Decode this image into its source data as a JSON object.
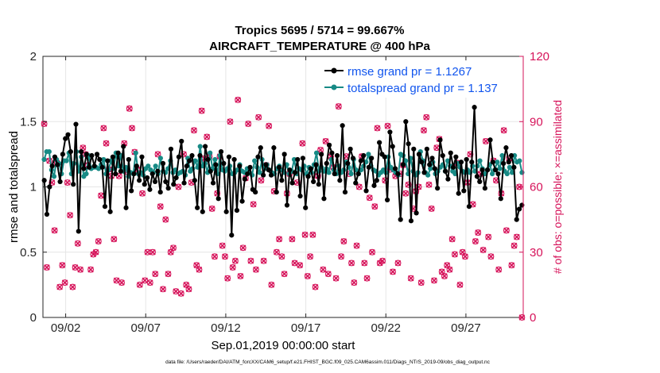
{
  "chart_data": {
    "type": "line",
    "title": "Tropics 5695 / 5714 = 99.667%",
    "subtitle": "AIRCRAFT_TEMPERATURE @ 400 hPa",
    "xlabel": "Sep.01,2019 00:00:00 start",
    "ylabel": "rmse and totalspread",
    "ylabel_right": "# of obs: o=possible; ×=assimilated",
    "xlim": [
      0.5,
      30.5
    ],
    "ylim": [
      0,
      2
    ],
    "ylim_right": [
      0,
      120
    ],
    "x_ticks": [
      {
        "value": 1.92,
        "label": "09/02"
      },
      {
        "value": 6.92,
        "label": "09/07"
      },
      {
        "value": 11.92,
        "label": "09/12"
      },
      {
        "value": 16.92,
        "label": "09/17"
      },
      {
        "value": 21.92,
        "label": "09/22"
      },
      {
        "value": 26.92,
        "label": "09/27"
      }
    ],
    "y_ticks": [
      "0",
      "0.5",
      "1",
      "1.5",
      "2"
    ],
    "y_ticks_right": [
      "0",
      "30",
      "60",
      "90",
      "120"
    ],
    "grid": true,
    "legend_position": "top-right",
    "footnote": "data file: /Users/raeder/DAI/ATM_forcXX/CAM6_setup/f.e21.FHIST_BGC.f09_025.CAM6assim.011/Diags_NTrS_2019-09/obs_diag_output.nc",
    "series": [
      {
        "name": "rmse grand pr = 1.1267",
        "color": "#000000",
        "y_axis": "left",
        "values": [
          1.05,
          0.79,
          1.0,
          1.16,
          1.23,
          1.17,
          1.04,
          1.25,
          1.37,
          1.4,
          1.27,
          1.02,
          1.48,
          0.66,
          1.27,
          1.14,
          1.25,
          1.15,
          1.24,
          1.16,
          1.25,
          1.21,
          1.15,
          0.85,
          1.2,
          0.81,
          1.23,
          1.1,
          1.26,
          1.12,
          1.31,
          0.84,
          1.21,
          0.97,
          1.1,
          1.16,
          1.05,
          1.23,
          1.02,
          1.07,
          0.98,
          1.1,
          1.04,
          1.12,
          0.96,
          1.18,
          1.04,
          0.99,
          1.29,
          1.02,
          1.07,
          1.23,
          1.35,
          1.03,
          1.16,
          1.2,
          1.24,
          1.05,
          0.84,
          1.24,
          0.81,
          1.31,
          1.21,
          1.12,
          1.03,
          1.17,
          0.91,
          1.27,
          1.18,
          0.81,
          1.23,
          0.63,
          1.21,
          0.82,
          1.16,
          0.89,
          1.06,
          1.1,
          1.15,
          0.98,
          0.96,
          1.23,
          1.3,
          1.09,
          1.17,
          1.13,
          1.09,
          1.3,
          0.96,
          1.15,
          1.05,
          1.25,
          0.86,
          1.13,
          1.03,
          1.11,
          1.21,
          0.93,
          1.22,
          0.84,
          1.08,
          1.14,
          1.04,
          1.17,
          1.02,
          1.25,
          0.91,
          1.18,
          1.32,
          1.26,
          1.1,
          1.24,
          1.05,
          1.47,
          0.96,
          1.18,
          1.29,
          1.22,
          1.03,
          1.1,
          1.2,
          1.24,
          0.97,
          1.15,
          1.22,
          1.01,
          1.05,
          1.34,
          1.25,
          1.23,
          0.9,
          1.42,
          1.31,
          1.14,
          1.1,
          0.75,
          1.17,
          1.5,
          1.33,
          0.74,
          1.29,
          0.8,
          1.25,
          1.19,
          1.11,
          1.29,
          1.17,
          1.22,
          1.14,
          0.99,
          1.36,
          1.24,
          1.12,
          1.06,
          1.26,
          1.15,
          1.23,
          0.95,
          1.19,
          0.97,
          1.21,
          0.85,
          1.19,
          1.61,
          1.08,
          1.04,
          1.13,
          0.99,
          1.13,
          1.36,
          1.19,
          1.13,
          1.1,
          0.91,
          1.18,
          1.3,
          1.19,
          1.24,
          1.15,
          0.75,
          0.83,
          0.86
        ]
      },
      {
        "name": "totalspread grand pr = 1.137",
        "color": "#178a85",
        "y_axis": "left",
        "values": [
          1.21,
          1.27,
          1.27,
          1.13,
          1.08,
          1.21,
          1.18,
          1.1,
          1.2,
          1.2,
          1.26,
          1.1,
          1.18,
          1.27,
          1.12,
          1.23,
          1.08,
          1.1,
          1.24,
          1.14,
          1.15,
          1.15,
          1.14,
          1.17,
          1.21,
          1.1,
          1.13,
          1.2,
          1.14,
          1.26,
          1.16,
          1.24,
          1.12,
          1.15,
          1.08,
          1.11,
          1.1,
          1.26,
          1.1,
          1.11,
          1.09,
          1.14,
          1.16,
          1.13,
          1.11,
          1.16,
          1.1,
          1.22,
          1.12,
          1.11,
          1.14,
          1.2,
          1.11,
          1.13,
          1.1,
          1.11,
          1.12,
          1.09,
          1.22,
          1.12,
          1.14,
          1.2,
          1.15,
          1.31,
          1.16,
          1.18,
          1.11,
          1.26,
          1.14,
          1.21,
          1.1,
          1.24,
          1.13,
          1.12,
          1.14,
          1.16,
          1.1,
          1.11,
          1.13,
          1.17,
          1.12,
          1.11,
          1.14,
          1.11,
          1.09,
          1.2,
          1.15,
          1.11,
          1.21,
          1.14,
          1.17,
          1.13,
          1.11,
          1.1,
          1.14,
          1.16,
          1.13,
          1.11,
          1.17,
          1.1,
          1.12,
          1.21,
          1.1,
          1.14,
          1.13,
          1.16,
          1.1,
          1.15,
          1.11,
          1.17,
          1.26,
          1.12,
          1.15,
          1.12,
          1.14,
          1.11,
          1.21,
          1.13,
          1.1,
          1.16,
          1.11,
          1.13,
          1.19,
          1.15,
          1.1,
          1.21,
          1.13,
          1.1,
          1.13,
          1.16,
          1.19,
          1.25,
          1.16,
          1.13,
          1.12,
          1.09,
          1.11,
          1.13,
          1.11,
          1.23,
          1.15,
          1.13,
          1.11,
          1.09,
          1.25,
          1.24,
          1.2,
          1.1,
          1.22,
          1.12,
          1.09,
          1.11,
          1.27,
          1.2,
          1.11,
          1.09,
          1.14,
          1.19,
          1.1,
          1.12,
          1.15,
          1.17,
          1.12,
          1.2,
          1.16,
          1.12,
          1.1,
          1.18,
          1.15,
          1.12,
          1.11,
          1.13,
          1.11,
          1.16,
          1.12,
          1.16,
          1.2,
          1.14,
          1.1,
          1.13,
          1.17,
          1.1,
          1.13,
          1.19,
          1.14,
          1.24,
          1.12,
          1.1,
          1.15,
          1.11,
          1.24,
          1.19,
          1.2,
          1.11
        ]
      },
      {
        "name": "# obs possible",
        "color": "#d6135a",
        "marker": "o",
        "y_axis": "right",
        "values": [
          89,
          23,
          72,
          62,
          40,
          71,
          14,
          24,
          16,
          62,
          47,
          14,
          23,
          34,
          22,
          78,
          75,
          70,
          22,
          29,
          30,
          35,
          56,
          87,
          80,
          68,
          65,
          36,
          17,
          65,
          16,
          80,
          67,
          96,
          87,
          76,
          68,
          15,
          57,
          17,
          30,
          16,
          30,
          20,
          75,
          51,
          13,
          45,
          20,
          30,
          32,
          12,
          60,
          11,
          75,
          15,
          13,
          62,
          86,
          24,
          22,
          95,
          73,
          83,
          74,
          50,
          28,
          57,
          74,
          33,
          28,
          18,
          90,
          23,
          26,
          100,
          19,
          32,
          64,
          89,
          26,
          52,
          22,
          92,
          63,
          26,
          70,
          88,
          15,
          58,
          30,
          36,
          28,
          20,
          57,
          66,
          36,
          25,
          62,
          24,
          80,
          38,
          19,
          28,
          38,
          14,
          65,
          77,
          22,
          81,
          20,
          74,
          69,
          18,
          97,
          28,
          35,
          74,
          66,
          25,
          16,
          33,
          60,
          74,
          25,
          18,
          55,
          30,
          51,
          87,
          25,
          26,
          63,
          88,
          68,
          21,
          65,
          25,
          66,
          70,
          57,
          61,
          18,
          50,
          58,
          60,
          16,
          86,
          92,
          61,
          50,
          17,
          78,
          82,
          21,
          19,
          24,
          22,
          36,
          29,
          71,
          15,
          30,
          28,
          62,
          75,
          52,
          35,
          39,
          66,
          31,
          81,
          37,
          28,
          72,
          63,
          22,
          57,
          86,
          40,
          73,
          24,
          33,
          37,
          60,
          0
        ]
      },
      {
        "name": "# obs assimilated",
        "color": "#d6135a",
        "marker": "x",
        "y_axis": "right",
        "values": [
          89,
          23,
          72,
          62,
          40,
          71,
          14,
          24,
          16,
          62,
          47,
          14,
          23,
          34,
          22,
          78,
          75,
          70,
          22,
          29,
          30,
          35,
          56,
          87,
          80,
          68,
          65,
          36,
          17,
          65,
          16,
          80,
          67,
          96,
          87,
          76,
          68,
          15,
          57,
          17,
          30,
          16,
          30,
          20,
          75,
          51,
          13,
          45,
          20,
          30,
          32,
          12,
          60,
          11,
          75,
          15,
          13,
          62,
          86,
          24,
          22,
          95,
          73,
          83,
          74,
          50,
          28,
          57,
          74,
          33,
          28,
          18,
          90,
          23,
          26,
          100,
          19,
          32,
          64,
          89,
          26,
          52,
          22,
          92,
          63,
          26,
          70,
          88,
          15,
          58,
          30,
          36,
          28,
          20,
          57,
          66,
          36,
          25,
          62,
          24,
          80,
          38,
          19,
          28,
          38,
          14,
          65,
          77,
          22,
          81,
          20,
          74,
          69,
          18,
          97,
          28,
          35,
          74,
          66,
          25,
          16,
          33,
          60,
          74,
          25,
          18,
          55,
          30,
          51,
          87,
          25,
          26,
          63,
          88,
          68,
          21,
          65,
          25,
          66,
          70,
          57,
          61,
          18,
          50,
          58,
          60,
          16,
          86,
          92,
          61,
          50,
          17,
          78,
          82,
          21,
          19,
          24,
          22,
          36,
          29,
          71,
          15,
          30,
          28,
          62,
          75,
          52,
          35,
          39,
          66,
          31,
          81,
          37,
          28,
          72,
          63,
          22,
          57,
          86,
          40,
          73,
          24,
          33,
          37,
          60,
          0
        ]
      }
    ]
  }
}
